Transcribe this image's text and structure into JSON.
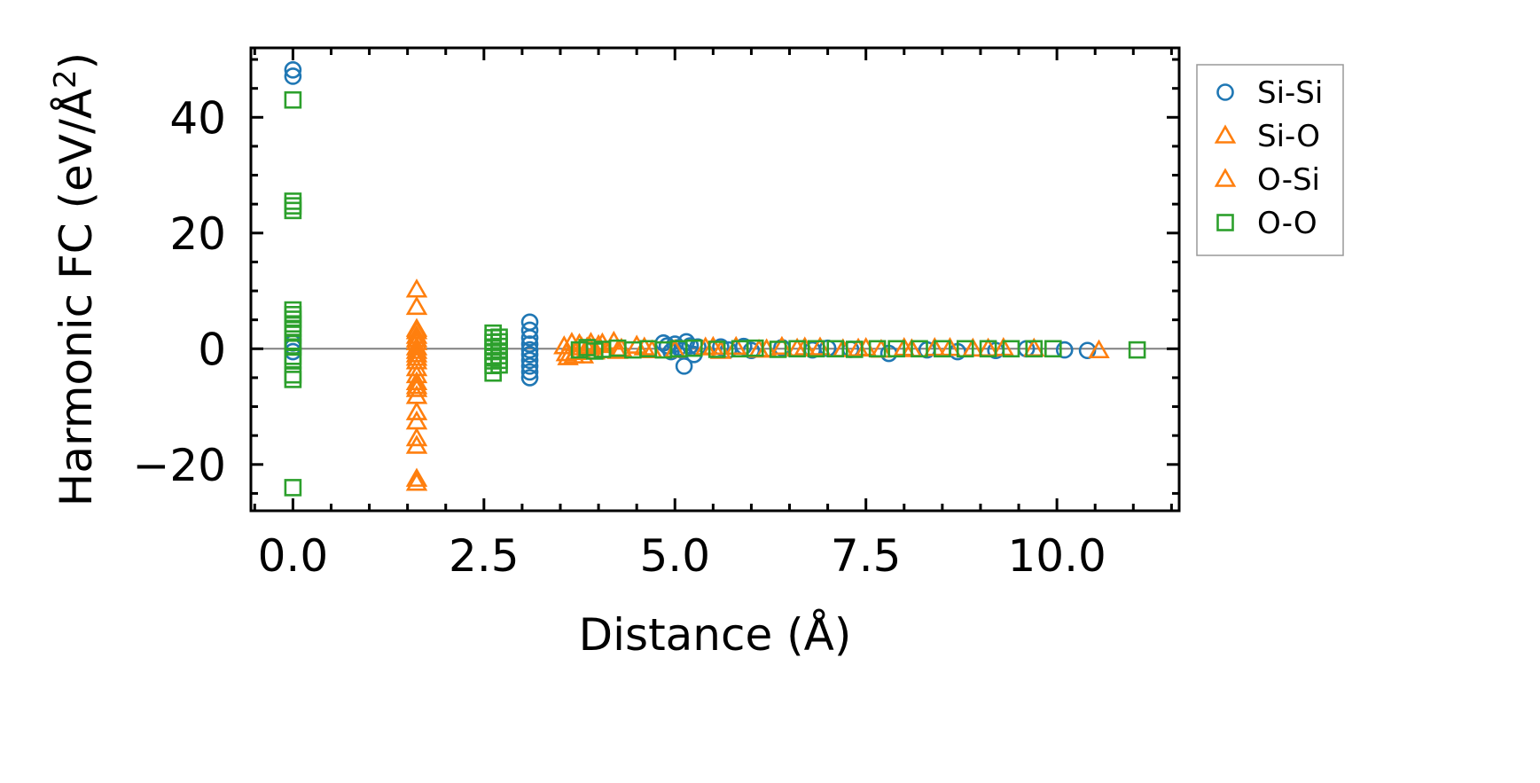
{
  "chart_data": {
    "type": "scatter",
    "title": "",
    "xlabel": "Distance (Å)",
    "ylabel_main": "Harmonic FC (eV/Å",
    "ylabel_sup": "2",
    "ylabel_close": ")",
    "xlim": [
      -0.55,
      11.6
    ],
    "ylim": [
      -28,
      52
    ],
    "xticks": [
      0.0,
      2.5,
      5.0,
      7.5,
      10.0
    ],
    "xtick_labels": [
      "0.0",
      "2.5",
      "5.0",
      "7.5",
      "10.0"
    ],
    "yticks": [
      -20,
      0,
      20,
      40
    ],
    "ytick_labels": [
      "−20",
      "0",
      "20",
      "40"
    ],
    "zero_line": 0,
    "legend_position": "outside-right-top",
    "series": [
      {
        "name": "Si-Si",
        "marker": "circle",
        "color": "#1f77b4",
        "points": [
          [
            0,
            48.2
          ],
          [
            0,
            47.1
          ],
          [
            0,
            1.0
          ],
          [
            0,
            0.3
          ],
          [
            0,
            -0.5
          ],
          [
            3.1,
            4.6
          ],
          [
            3.1,
            3.2
          ],
          [
            3.1,
            1.9
          ],
          [
            3.1,
            0.8
          ],
          [
            3.1,
            -0.2
          ],
          [
            3.1,
            -1.0
          ],
          [
            3.1,
            -2.0
          ],
          [
            3.1,
            -3.0
          ],
          [
            3.1,
            -4.0
          ],
          [
            3.1,
            -5.0
          ],
          [
            4.85,
            1.0
          ],
          [
            4.9,
            0.5
          ],
          [
            4.95,
            -0.5
          ],
          [
            5.0,
            0.8
          ],
          [
            5.05,
            0.2
          ],
          [
            5.1,
            -0.3
          ],
          [
            5.12,
            -3.0
          ],
          [
            5.15,
            1.2
          ],
          [
            5.2,
            0.5
          ],
          [
            5.25,
            -1.0
          ],
          [
            5.3,
            0.3
          ],
          [
            5.6,
            0.3
          ],
          [
            5.7,
            -0.2
          ],
          [
            5.9,
            0.4
          ],
          [
            6.0,
            -0.3
          ],
          [
            6.4,
            0.2
          ],
          [
            6.8,
            -0.2
          ],
          [
            7.0,
            0.1
          ],
          [
            7.3,
            -0.1
          ],
          [
            7.8,
            -0.8
          ],
          [
            8.3,
            -0.2
          ],
          [
            8.7,
            -0.5
          ],
          [
            9.2,
            -0.3
          ],
          [
            9.6,
            0.0
          ],
          [
            10.1,
            -0.2
          ],
          [
            10.4,
            -0.3
          ]
        ]
      },
      {
        "name": "Si-O",
        "marker": "triangle",
        "color": "#ff7f0e",
        "points": [
          [
            1.62,
            10.2
          ],
          [
            1.62,
            7.2
          ],
          [
            1.62,
            3.4
          ],
          [
            1.62,
            2.2
          ],
          [
            1.62,
            1.1
          ],
          [
            1.62,
            0.2
          ],
          [
            1.62,
            -1.0
          ],
          [
            1.62,
            -2.2
          ],
          [
            1.62,
            -3.4
          ],
          [
            1.62,
            -4.6
          ],
          [
            1.62,
            -5.8
          ],
          [
            1.62,
            -7.0
          ],
          [
            1.62,
            -8.2
          ],
          [
            1.62,
            -11.0
          ],
          [
            1.62,
            -12.6
          ],
          [
            1.62,
            -15.5
          ],
          [
            1.62,
            -22.5
          ],
          [
            3.55,
            0.4
          ],
          [
            3.6,
            -1.5
          ],
          [
            3.65,
            1.0
          ],
          [
            3.7,
            -0.6
          ],
          [
            3.75,
            0.8
          ],
          [
            3.8,
            -1.2
          ],
          [
            3.85,
            0.2
          ],
          [
            3.9,
            1.0
          ],
          [
            3.95,
            -0.5
          ],
          [
            4.0,
            0.6
          ],
          [
            4.1,
            -0.3
          ],
          [
            4.2,
            1.2
          ],
          [
            4.3,
            0.0
          ],
          [
            4.5,
            0.5
          ],
          [
            4.7,
            -0.3
          ],
          [
            5.4,
            0.2
          ],
          [
            5.6,
            -0.4
          ],
          [
            5.8,
            0.3
          ],
          [
            6.1,
            -0.2
          ],
          [
            6.4,
            0.3
          ],
          [
            6.6,
            0.0
          ],
          [
            6.9,
            0.2
          ],
          [
            7.2,
            -0.1
          ],
          [
            7.5,
            0.1
          ],
          [
            7.7,
            -0.2
          ],
          [
            8.0,
            0.1
          ],
          [
            8.4,
            0.1
          ],
          [
            8.9,
            0.0
          ],
          [
            9.3,
            0.1
          ],
          [
            9.7,
            0.0
          ],
          [
            10.55,
            -0.3
          ]
        ]
      },
      {
        "name": "O-Si",
        "marker": "triangle",
        "color": "#ff7f0e",
        "points": [
          [
            1.62,
            3.0
          ],
          [
            1.62,
            1.6
          ],
          [
            1.62,
            -0.4
          ],
          [
            1.62,
            -1.6
          ],
          [
            1.62,
            -6.5
          ],
          [
            1.62,
            -16.8
          ],
          [
            1.62,
            -23.2
          ],
          [
            3.58,
            -0.8
          ],
          [
            3.68,
            -1.2
          ],
          [
            3.78,
            0.2
          ],
          [
            3.88,
            0.4
          ],
          [
            4.05,
            0.9
          ],
          [
            4.25,
            -0.4
          ],
          [
            4.6,
            0.2
          ],
          [
            5.0,
            -0.2
          ],
          [
            5.5,
            0.3
          ],
          [
            6.2,
            -0.1
          ],
          [
            6.7,
            0.2
          ],
          [
            7.4,
            0.0
          ],
          [
            8.1,
            -0.1
          ],
          [
            8.6,
            0.1
          ],
          [
            9.1,
            0.0
          ]
        ]
      },
      {
        "name": "O-O",
        "marker": "square",
        "color": "#2ca02c",
        "points": [
          [
            0,
            43.0
          ],
          [
            0,
            25.5
          ],
          [
            0,
            24.7
          ],
          [
            0,
            23.9
          ],
          [
            0,
            6.7
          ],
          [
            0,
            5.9
          ],
          [
            0,
            5.1
          ],
          [
            0,
            4.3
          ],
          [
            0,
            3.5
          ],
          [
            0,
            2.7
          ],
          [
            0,
            1.1
          ],
          [
            0,
            0.3
          ],
          [
            0,
            -1.3
          ],
          [
            0,
            -2.1
          ],
          [
            0,
            -4.5
          ],
          [
            0,
            -5.3
          ],
          [
            0,
            -24.0
          ],
          [
            2.62,
            2.7
          ],
          [
            2.62,
            1.9
          ],
          [
            2.62,
            1.1
          ],
          [
            2.62,
            0.3
          ],
          [
            2.62,
            -0.5
          ],
          [
            2.62,
            -1.3
          ],
          [
            2.62,
            -2.1
          ],
          [
            2.62,
            -2.9
          ],
          [
            2.62,
            -4.2
          ],
          [
            2.7,
            2.0
          ],
          [
            2.7,
            1.2
          ],
          [
            2.7,
            0.4
          ],
          [
            2.7,
            -0.4
          ],
          [
            2.7,
            -1.2
          ],
          [
            2.7,
            -2.0
          ],
          [
            2.7,
            -2.8
          ],
          [
            3.75,
            -0.2
          ],
          [
            3.85,
            0.2
          ],
          [
            3.95,
            -0.4
          ],
          [
            4.05,
            -0.1
          ],
          [
            4.25,
            0.1
          ],
          [
            4.45,
            -0.2
          ],
          [
            4.65,
            0.0
          ],
          [
            4.85,
            -0.2
          ],
          [
            5.05,
            0.0
          ],
          [
            5.25,
            0.1
          ],
          [
            5.55,
            -0.1
          ],
          [
            5.85,
            0.0
          ],
          [
            6.05,
            0.1
          ],
          [
            6.35,
            -0.1
          ],
          [
            6.6,
            0.0
          ],
          [
            6.85,
            0.0
          ],
          [
            7.1,
            0.0
          ],
          [
            7.35,
            -0.1
          ],
          [
            7.65,
            0.0
          ],
          [
            7.9,
            0.0
          ],
          [
            8.2,
            0.0
          ],
          [
            8.5,
            0.0
          ],
          [
            8.8,
            0.0
          ],
          [
            9.1,
            0.0
          ],
          [
            9.4,
            0.0
          ],
          [
            9.7,
            0.0
          ],
          [
            9.95,
            0.0
          ],
          [
            11.05,
            -0.2
          ]
        ]
      }
    ]
  }
}
